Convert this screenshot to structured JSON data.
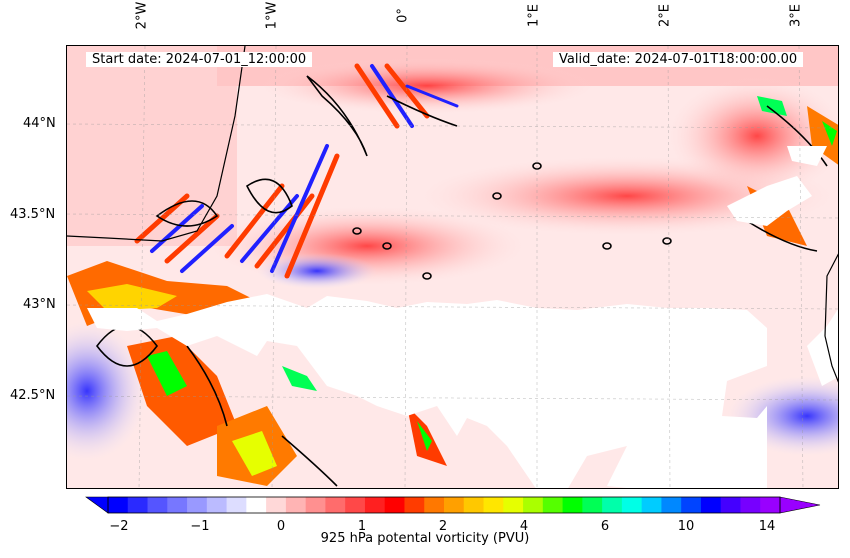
{
  "map": {
    "start_date": "Start date: 2024-07-01_12:00:00",
    "valid_date": "Valid_date: 2024-07-01T18:00:00.00",
    "lon_labels": [
      "2°W",
      "1°W",
      "0°",
      "1°E",
      "2°E",
      "3°E"
    ],
    "lat_labels": [
      "44°N",
      "43.5°N",
      "43°N",
      "42.5°N"
    ]
  },
  "colorbar": {
    "label": "925 hPa potental vorticity (PVU)",
    "tick_labels": [
      "−2",
      "−1",
      "0",
      "1",
      "2",
      "4",
      "6",
      "10",
      "14"
    ],
    "colors": [
      "#0000ff",
      "#2a2aff",
      "#5555ff",
      "#7777ff",
      "#9999ff",
      "#bbbbff",
      "#ddddff",
      "#ffffff",
      "#ffd8d8",
      "#ffb4b4",
      "#ff9090",
      "#ff6c6c",
      "#ff4848",
      "#ff2020",
      "#ff0000",
      "#ff3c00",
      "#ff7800",
      "#ffa000",
      "#ffc800",
      "#ffe600",
      "#e6ff00",
      "#aaff00",
      "#55ff00",
      "#00ff00",
      "#00ff55",
      "#00ffaa",
      "#00ffe6",
      "#00ccff",
      "#0088ff",
      "#0044ff",
      "#0000ff",
      "#4400ff",
      "#7700ff",
      "#9900ff"
    ]
  }
}
